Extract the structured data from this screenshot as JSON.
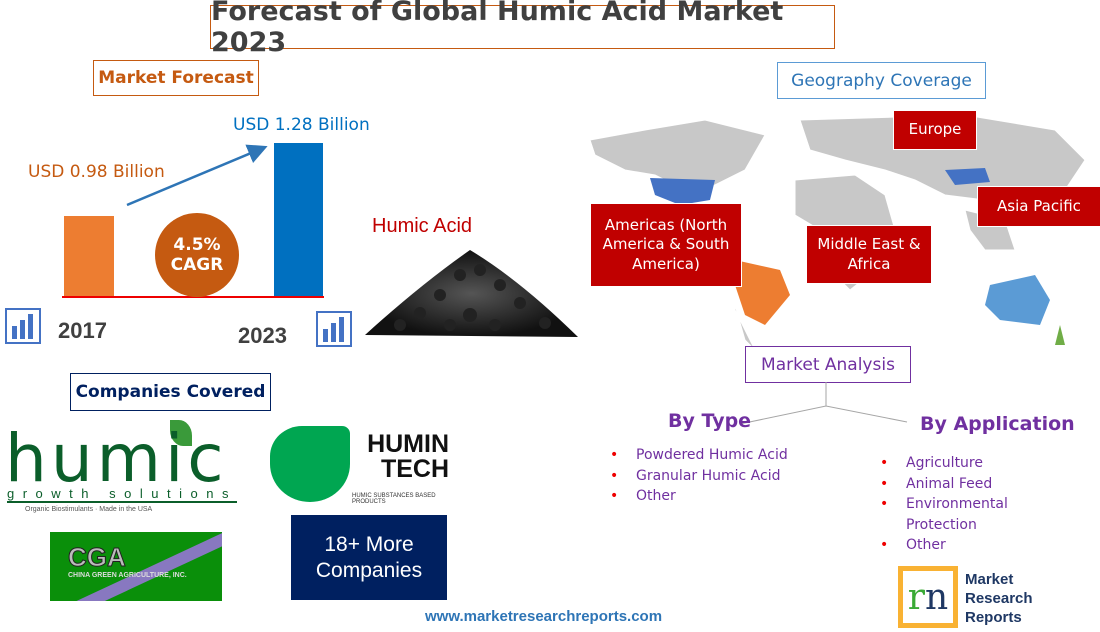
{
  "title": "Forecast of Global Humic Acid Market 2023",
  "forecast": {
    "heading": "Market Forecast",
    "value_2017": "USD 0.98 Billion",
    "value_2023": "USD 1.28 Billion",
    "cagr_value": "4.5%",
    "cagr_label": "CAGR",
    "year_start": "2017",
    "year_end": "2023",
    "bar_values_billion": [
      0.98,
      1.28
    ],
    "colors": {
      "start": "#ed7d31",
      "end": "#0070c0"
    }
  },
  "product_image": {
    "label": "Humic Acid"
  },
  "geography": {
    "heading": "Geography Coverage",
    "regions": [
      "Europe",
      "Asia Pacific",
      "Americas (North America & South America)",
      "Middle East & Africa"
    ]
  },
  "analysis": {
    "heading": "Market Analysis",
    "by_type": {
      "heading": "By Type",
      "items": [
        "Powdered Humic Acid",
        "Granular Humic Acid",
        "Other"
      ]
    },
    "by_application": {
      "heading": "By Application",
      "items": [
        "Agriculture",
        "Animal Feed",
        "Environmental Protection",
        "Other"
      ]
    }
  },
  "companies": {
    "heading": "Companies Covered",
    "logos": [
      {
        "name": "humic",
        "tagline": "growth solutions",
        "sub": "Organic Biostimulants · Made in the USA"
      },
      {
        "name": "HUMIN TECH",
        "sub": "HUMIC SUBSTANCES BASED PRODUCTS"
      },
      {
        "name": "CGA",
        "sub": "CHINA GREEN AGRICULTURE, INC."
      }
    ],
    "more": "18+ More Companies"
  },
  "footer": {
    "url": "www.marketresearchreports.com",
    "brand": [
      "Market",
      "Research",
      "Reports"
    ]
  }
}
